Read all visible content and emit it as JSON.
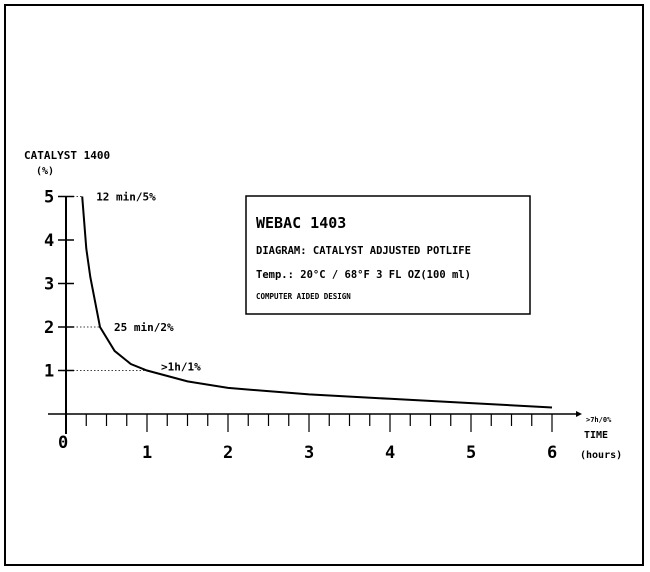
{
  "chart_data": {
    "type": "line",
    "ylabel": "CATALYST 1400",
    "yunit": "(%)",
    "xlabel": "TIME",
    "xunit": "(hours)",
    "x_end_label": ">7h/0%",
    "origin_label": "0",
    "xlim": [
      0,
      6.2
    ],
    "ylim": [
      0,
      5
    ],
    "x_ticks": [
      "1",
      "2",
      "3",
      "4",
      "5",
      "6"
    ],
    "y_ticks": [
      "1",
      "2",
      "3",
      "4",
      "5"
    ],
    "series": [
      {
        "points": [
          {
            "x": 0.2,
            "y": 5.0
          },
          {
            "x": 0.25,
            "y": 3.8
          },
          {
            "x": 0.3,
            "y": 3.15
          },
          {
            "x": 0.42,
            "y": 2.0
          },
          {
            "x": 0.6,
            "y": 1.45
          },
          {
            "x": 0.8,
            "y": 1.15
          },
          {
            "x": 1.0,
            "y": 1.0
          },
          {
            "x": 1.5,
            "y": 0.75
          },
          {
            "x": 2.0,
            "y": 0.6
          },
          {
            "x": 3.0,
            "y": 0.45
          },
          {
            "x": 4.0,
            "y": 0.35
          },
          {
            "x": 5.0,
            "y": 0.25
          },
          {
            "x": 6.0,
            "y": 0.15
          }
        ]
      }
    ],
    "annotations": [
      {
        "label": "12 min/5%",
        "x": 0.2,
        "y": 5
      },
      {
        "label": "25 min/2%",
        "x": 0.42,
        "y": 2
      },
      {
        "label": ">1h/1%",
        "x": 1.0,
        "y": 1
      }
    ],
    "info_box": {
      "title": "WEBAC 1403",
      "line1": "DIAGRAM: CATALYST ADJUSTED POTLIFE",
      "line2": "Temp.: 20°C / 68°F  3 FL OZ(100 ml)",
      "line3": "COMPUTER AIDED DESIGN"
    },
    "colors": {
      "line": "#000000",
      "background": "#ffffff"
    }
  }
}
